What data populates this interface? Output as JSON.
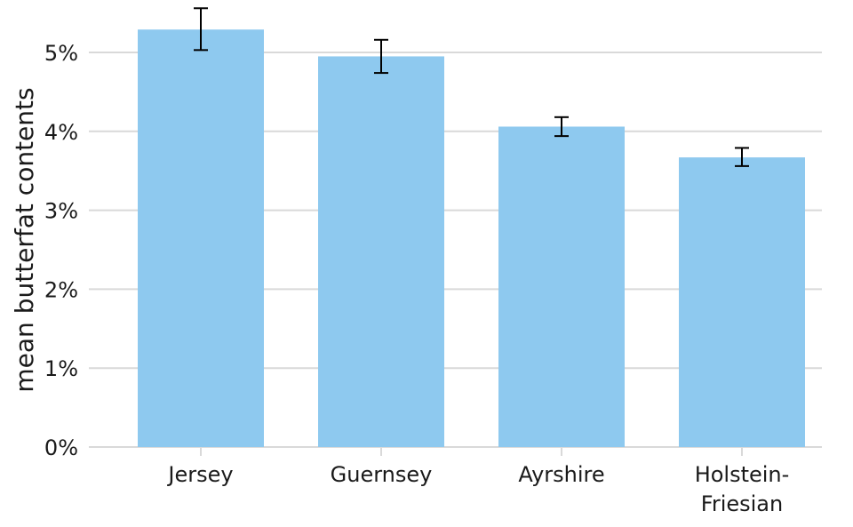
{
  "chart_data": {
    "type": "bar",
    "categories": [
      "Jersey",
      "Guernsey",
      "Ayrshire",
      "Holstein-Friesian"
    ],
    "category_lines": [
      [
        "Jersey"
      ],
      [
        "Guernsey"
      ],
      [
        "Ayrshire"
      ],
      [
        "Holstein-",
        "Friesian"
      ]
    ],
    "values": [
      5.29,
      4.95,
      4.06,
      3.67
    ],
    "error_low": [
      5.03,
      4.74,
      3.94,
      3.56
    ],
    "error_high": [
      5.56,
      5.16,
      4.18,
      3.79
    ],
    "ylabel": "mean butterfat contents",
    "xlabel": "",
    "ylim": [
      0,
      5.5
    ],
    "yticks": [
      0,
      1,
      2,
      3,
      4,
      5
    ],
    "ytick_suffix": "%",
    "grid": "horizontal",
    "colors": {
      "bar": "#8ec9ef",
      "error_bar": "#000000",
      "grid": "#d9d9d9",
      "text": "#1a1a1a"
    }
  }
}
